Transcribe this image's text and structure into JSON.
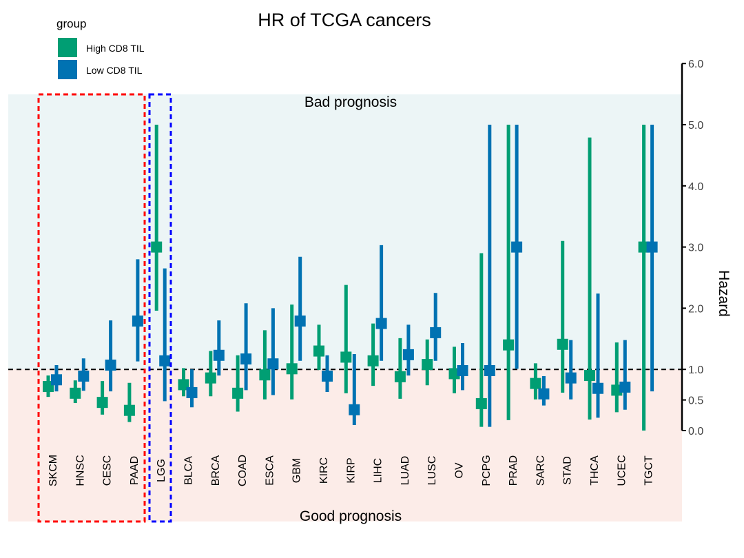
{
  "chart_data": {
    "type": "forest",
    "title": "HR of TCGA cancers",
    "ylabel": "Hazard",
    "ylim": [
      0,
      6
    ],
    "yticks": [
      0.0,
      0.5,
      1.0,
      2.0,
      3.0,
      4.0,
      5.0,
      6.0
    ],
    "ytick_labels": [
      "0.0",
      "0.5",
      "1.0",
      "2.0",
      "3.0",
      "4.0",
      "5.0",
      "6.0"
    ],
    "reference_line": 1.0,
    "region_labels": {
      "top": "Bad prognosis",
      "bottom": "Good prognosis"
    },
    "legend": {
      "title": "group",
      "placement": "top-left",
      "entries": [
        "High CD8 TIL",
        "Low CD8 TIL"
      ]
    },
    "colors": {
      "High CD8 TIL": "#009E73",
      "Low CD8 TIL": "#0072B2",
      "bad_bg": "#ECF5F6",
      "good_bg": "#FCECE8",
      "red_box": "#FF0000",
      "blue_box": "#0000FF"
    },
    "highlight_groups": [
      {
        "color": "red",
        "categories": [
          "SKCM",
          "HNSC",
          "CESC",
          "PAAD"
        ]
      },
      {
        "color": "blue",
        "categories": [
          "LGG"
        ]
      }
    ],
    "categories": [
      "SKCM",
      "HNSC",
      "CESC",
      "PAAD",
      "LGG",
      "BLCA",
      "BRCA",
      "COAD",
      "ESCA",
      "GBM",
      "KIRC",
      "KIRP",
      "LIHC",
      "LUAD",
      "LUSC",
      "OV",
      "PCPG",
      "PRAD",
      "SARC",
      "STAD",
      "THCA",
      "UCEC",
      "TGCT"
    ],
    "series": [
      {
        "name": "High CD8 TIL",
        "hr": [
          0.72,
          0.61,
          0.46,
          0.33,
          3.0,
          0.75,
          0.86,
          0.61,
          0.91,
          1.01,
          1.3,
          1.2,
          1.14,
          0.88,
          1.08,
          0.93,
          0.44,
          1.4,
          0.77,
          1.41,
          0.9,
          0.66,
          3.0
        ],
        "lower": [
          0.55,
          0.45,
          0.26,
          0.14,
          1.96,
          0.56,
          0.56,
          0.31,
          0.51,
          0.51,
          0.99,
          0.61,
          0.73,
          0.52,
          0.74,
          0.61,
          0.06,
          0.17,
          0.51,
          0.62,
          0.18,
          0.3,
          0.0
        ],
        "upper": [
          0.9,
          0.82,
          0.81,
          0.78,
          5.0,
          1.02,
          1.3,
          1.23,
          1.64,
          2.06,
          1.73,
          2.38,
          1.75,
          1.51,
          1.49,
          1.37,
          2.9,
          5.0,
          1.1,
          3.1,
          4.79,
          1.44,
          5.0
        ]
      },
      {
        "name": "Low CD8 TIL",
        "hr": [
          0.83,
          0.89,
          1.07,
          1.79,
          1.14,
          0.62,
          1.23,
          1.17,
          1.09,
          1.79,
          0.89,
          0.34,
          1.75,
          1.24,
          1.6,
          0.98,
          0.98,
          3.0,
          0.6,
          0.86,
          0.69,
          0.71,
          3.0
        ],
        "lower": [
          0.64,
          0.65,
          0.64,
          1.13,
          0.48,
          0.38,
          0.9,
          0.66,
          0.58,
          1.14,
          0.63,
          0.09,
          1.14,
          0.9,
          1.14,
          0.66,
          0.06,
          1.01,
          0.41,
          0.51,
          0.21,
          0.34,
          0.64
        ],
        "upper": [
          1.07,
          1.18,
          1.8,
          2.8,
          2.65,
          1.0,
          1.8,
          2.08,
          2.0,
          2.84,
          1.23,
          1.25,
          3.03,
          1.73,
          2.25,
          1.43,
          5.0,
          5.0,
          0.89,
          1.48,
          2.24,
          1.48,
          5.0
        ]
      }
    ]
  }
}
